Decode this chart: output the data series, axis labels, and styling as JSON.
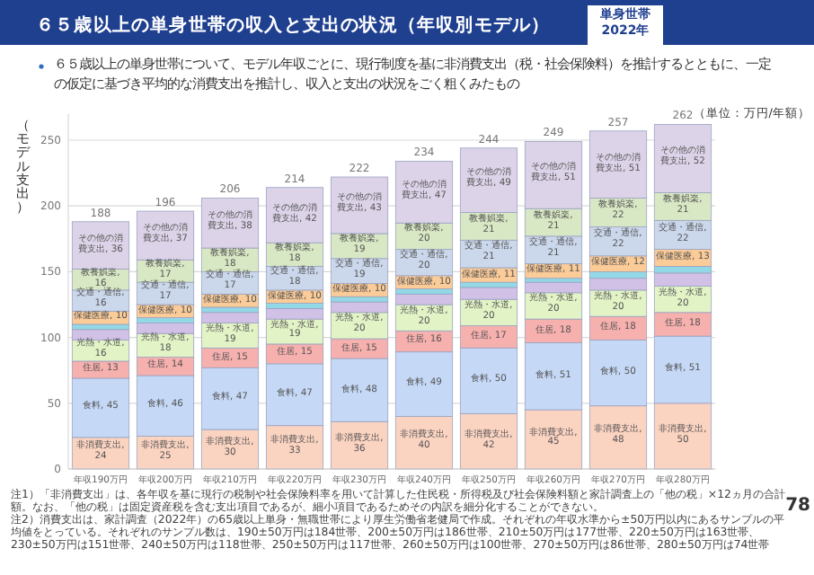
{
  "chart_data": {
    "type": "bar",
    "stacked": true,
    "title": "６５歳以上の単身世帯の収入と支出の状況（年収別モデル）",
    "subtitle": "単身世帯 2022年",
    "ylabel": "（モデル支出）",
    "categories": [
      "年収190万円",
      "年収200万円",
      "年収210万円",
      "年収220万円",
      "年収230万円",
      "年収240万円",
      "年収250万円",
      "年収260万円",
      "年収270万円",
      "年収280万円"
    ],
    "series": [
      {
        "color": "#fbd3c1",
        "values": [
          24,
          25,
          30,
          33,
          36,
          40,
          42,
          45,
          48,
          50
        ],
        "value_labels": [
          "非消費支出, 24",
          "非消費支出, 25",
          "非消費支出, 30",
          "非消費支出, 33",
          "非消費支出, 36",
          "非消費支出, 40",
          "非消費支出, 42",
          "非消費支出, 45",
          "非消費支出, 48",
          "非消費支出, 50"
        ]
      },
      {
        "color": "#c5d8f6",
        "values": [
          45,
          46,
          47,
          47,
          48,
          49,
          50,
          51,
          50,
          51
        ],
        "value_labels": [
          "食料, 45",
          "食料, 46",
          "食料, 47",
          "食料, 47",
          "食料, 48",
          "食料, 49",
          "食料, 50",
          "食料, 51",
          "食料, 50",
          "食料, 51"
        ]
      },
      {
        "color": "#f6b0ae",
        "values": [
          13,
          14,
          15,
          15,
          15,
          16,
          17,
          18,
          18,
          18
        ],
        "value_labels": [
          "住居, 13",
          "住居, 14",
          "住居, 15",
          "住居, 15",
          "住居, 15",
          "住居, 16",
          "住居, 17",
          "住居, 18",
          "住居, 18",
          "住居, 18"
        ]
      },
      {
        "color": "#e2f3c6",
        "values": [
          16,
          18,
          19,
          19,
          20,
          20,
          20,
          20,
          20,
          20
        ],
        "value_labels": [
          "光熱・水道, 16",
          "光熱・水道, 18",
          "光熱・水道, 19",
          "光熱・水道, 19",
          "光熱・水道, 20",
          "光熱・水道, 20",
          "光熱・水道, 20",
          "光熱・水道, 20",
          "光熱・水道, 20",
          "光熱・水道, 20"
        ]
      },
      {
        "color": "#d2c1e6",
        "values": [
          8,
          8,
          8,
          8,
          8,
          8,
          9,
          8,
          9,
          10
        ]
      },
      {
        "color": "#93d8e6",
        "values": [
          4,
          4,
          4,
          4,
          4,
          4,
          4,
          3,
          5,
          5
        ]
      },
      {
        "color": "#fbcb98",
        "values": [
          10,
          10,
          10,
          10,
          10,
          10,
          11,
          11,
          12,
          13
        ],
        "value_labels": [
          "保健医療, 10",
          "保健医療, 10",
          "保健医療, 10",
          "保健医療, 10",
          "保健医療, 10",
          "保健医療, 10",
          "保健医療, 11",
          "保健医療, 11",
          "保健医療, 12",
          "保健医療, 13"
        ]
      },
      {
        "color": "#cbd8ec",
        "values": [
          16,
          17,
          17,
          18,
          19,
          20,
          21,
          21,
          22,
          22
        ],
        "value_labels": [
          "交通・通信, 16",
          "交通・通信, 17",
          "交通・通信, 17",
          "交通・通信, 18",
          "交通・通信, 19",
          "交通・通信, 20",
          "交通・通信, 21",
          "交通・通信, 21",
          "交通・通信, 22",
          "交通・通信, 22"
        ]
      },
      {
        "color": "#d9e8c4",
        "values": [
          16,
          17,
          18,
          18,
          19,
          20,
          21,
          21,
          22,
          21
        ],
        "value_labels": [
          "教養娯楽, 16",
          "教養娯楽, 17",
          "教養娯楽, 18",
          "教養娯楽, 18",
          "教養娯楽, 19",
          "教養娯楽, 20",
          "教養娯楽, 21",
          "教養娯楽, 21",
          "教養娯楽, 22",
          "教養娯楽, 21"
        ]
      },
      {
        "color": "#dcd3e8",
        "values": [
          36,
          37,
          38,
          42,
          43,
          47,
          49,
          51,
          51,
          52
        ],
        "value_labels": [
          "その他の消費支出, 36",
          "その他の消費支出, 37",
          "その他の消費支出, 38",
          "その他の消費支出, 42",
          "その他の消費支出, 43",
          "その他の消費支出, 47",
          "その他の消費支出, 49",
          "その他の消費支出, 51",
          "その他の消費支出, 51",
          "その他の消費支出, 52"
        ]
      }
    ],
    "totals": [
      "188",
      "196",
      "206",
      "214",
      "222",
      "234",
      "244",
      "249",
      "257",
      "262"
    ],
    "ylim": [
      0,
      270
    ],
    "yticks": [
      0,
      50,
      100,
      150,
      200,
      250
    ],
    "grid": "y",
    "annotations": [
      "６５歳以上の単身世帯について、モデル年収ごとに、現行制度を基に非消費支出（税・社会保険料）を推計するとともに、一定の仮定に基づき平均的な消費支出を推計し、収入と支出の状況をごく粗くみたもの",
      "（単位：万円/年額）",
      "注1）「非消費支出」は、各年収を基に現行の税制や社会保険料率を用いて計算した住民税・所得税及び社会保険料額と家計調査上の「他の税」×12ヵ月の合計額。なお、「他の税」は固定資産税を含む支出項目であるが、細小項目であるためその内訳を細分化することができない。",
      "注2）消費支出は、家計調査（2022年）の65歳以上単身・無職世帯により厚生労働省老健局で作成。それぞれの年収水準から±50万円以内にあるサンプルの平均値をとっている。それぞれのサンプル数は、190±50万円は184世帯、200±50万円は186世帯、210±50万円は177世帯、220±50万円は163世帯、230±50万円は151世帯、240±50万円は118世帯、250±50万円は117世帯、260±50万円は100世帯、270±50万円は86世帯、280±50万円は74世帯",
      "78"
    ]
  }
}
